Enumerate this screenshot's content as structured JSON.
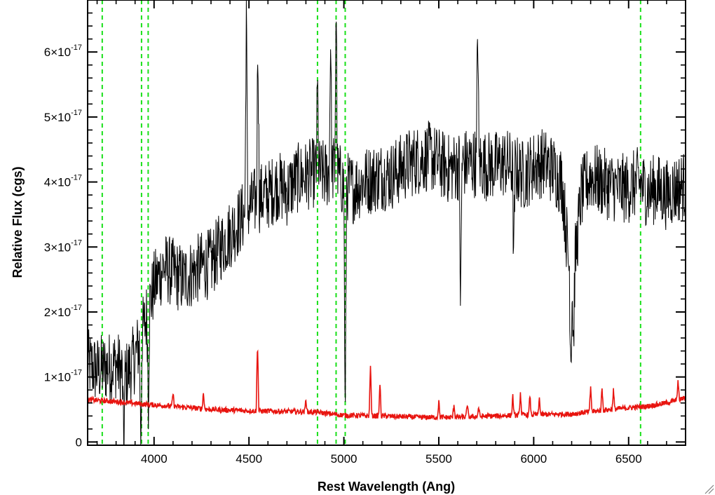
{
  "chart_data": {
    "type": "line",
    "xlabel": "Rest Wavelength (Ang)",
    "ylabel": "Relative Flux (cgs)",
    "xlim": [
      3650,
      6800
    ],
    "ylim": [
      -0.05,
      6.8
    ],
    "y_scale_label": "×10^-17",
    "x_ticks": [
      {
        "value": 4000,
        "label": "4000"
      },
      {
        "value": 4500,
        "label": "4500"
      },
      {
        "value": 5000,
        "label": "5000"
      },
      {
        "value": 5500,
        "label": "5500"
      },
      {
        "value": 6000,
        "label": "6000"
      },
      {
        "value": 6500,
        "label": "6500"
      }
    ],
    "y_ticks": [
      {
        "value": 0,
        "mant": "0",
        "exp": ""
      },
      {
        "value": 1,
        "mant": "1×10",
        "exp": "-17"
      },
      {
        "value": 2,
        "mant": "2×10",
        "exp": "-17"
      },
      {
        "value": 3,
        "mant": "3×10",
        "exp": "-17"
      },
      {
        "value": 4,
        "mant": "4×10",
        "exp": "-17"
      },
      {
        "value": 5,
        "mant": "5×10",
        "exp": "-17"
      },
      {
        "value": 6,
        "mant": "6×10",
        "exp": "-17"
      }
    ],
    "vertical_lines": [
      3727,
      3934,
      3969,
      4861,
      4959,
      5007,
      6563
    ],
    "series": [
      {
        "color": "#000000",
        "noise": 0.55,
        "points": [
          [
            3650,
            1.2
          ],
          [
            3700,
            1.1
          ],
          [
            3750,
            1.15
          ],
          [
            3800,
            1.2
          ],
          [
            3850,
            1.0
          ],
          [
            3900,
            1.3
          ],
          [
            3950,
            1.8
          ],
          [
            4000,
            2.4
          ],
          [
            4050,
            2.7
          ],
          [
            4100,
            2.6
          ],
          [
            4150,
            2.5
          ],
          [
            4200,
            2.6
          ],
          [
            4250,
            2.7
          ],
          [
            4300,
            2.75
          ],
          [
            4350,
            3.0
          ],
          [
            4400,
            3.2
          ],
          [
            4450,
            3.4
          ],
          [
            4500,
            3.6
          ],
          [
            4550,
            3.75
          ],
          [
            4600,
            3.8
          ],
          [
            4650,
            3.95
          ],
          [
            4700,
            3.85
          ],
          [
            4750,
            4.05
          ],
          [
            4800,
            4.1
          ],
          [
            4850,
            4.15
          ],
          [
            4900,
            4.1
          ],
          [
            4950,
            4.2
          ],
          [
            5000,
            3.95
          ],
          [
            5050,
            3.9
          ],
          [
            5100,
            4.0
          ],
          [
            5150,
            4.05
          ],
          [
            5200,
            4.1
          ],
          [
            5250,
            4.1
          ],
          [
            5300,
            4.2
          ],
          [
            5350,
            4.3
          ],
          [
            5400,
            4.35
          ],
          [
            5450,
            4.4
          ],
          [
            5500,
            4.3
          ],
          [
            5550,
            4.2
          ],
          [
            5600,
            4.25
          ],
          [
            5650,
            4.3
          ],
          [
            5700,
            4.3
          ],
          [
            5750,
            4.25
          ],
          [
            5800,
            4.25
          ],
          [
            5850,
            4.3
          ],
          [
            5900,
            4.2
          ],
          [
            5950,
            4.1
          ],
          [
            6000,
            4.25
          ],
          [
            6050,
            4.3
          ],
          [
            6100,
            4.2
          ],
          [
            6150,
            4.0
          ],
          [
            6200,
            2.2
          ],
          [
            6250,
            3.8
          ],
          [
            6300,
            4.1
          ],
          [
            6350,
            4.0
          ],
          [
            6400,
            3.95
          ],
          [
            6450,
            3.9
          ],
          [
            6500,
            3.9
          ],
          [
            6550,
            4.0
          ],
          [
            6600,
            3.85
          ],
          [
            6650,
            3.9
          ],
          [
            6700,
            3.8
          ],
          [
            6750,
            3.9
          ],
          [
            6800,
            3.95
          ]
        ],
        "features": [
          [
            3840,
            -1.2
          ],
          [
            3930,
            -1.7
          ],
          [
            3970,
            -1.4
          ],
          [
            4486,
            3.3
          ],
          [
            4547,
            2.7
          ],
          [
            4861,
            1.4
          ],
          [
            4930,
            2.2
          ],
          [
            4959,
            2.8
          ],
          [
            5007,
            -4.0
          ],
          [
            5615,
            -2.3
          ],
          [
            5705,
            2.3
          ],
          [
            5895,
            -1.5
          ],
          [
            6195,
            -1.1
          ],
          [
            6210,
            -1.0
          ]
        ]
      },
      {
        "color": "#e8140f",
        "noise": 0.04,
        "points": [
          [
            3650,
            0.65
          ],
          [
            3800,
            0.62
          ],
          [
            3950,
            0.58
          ],
          [
            4100,
            0.55
          ],
          [
            4300,
            0.5
          ],
          [
            4500,
            0.48
          ],
          [
            4700,
            0.47
          ],
          [
            4850,
            0.46
          ],
          [
            5000,
            0.41
          ],
          [
            5200,
            0.4
          ],
          [
            5400,
            0.38
          ],
          [
            5600,
            0.38
          ],
          [
            5800,
            0.4
          ],
          [
            6000,
            0.42
          ],
          [
            6200,
            0.43
          ],
          [
            6400,
            0.5
          ],
          [
            6600,
            0.55
          ],
          [
            6700,
            0.6
          ],
          [
            6800,
            0.68
          ]
        ],
        "features": [
          [
            4100,
            0.2
          ],
          [
            4260,
            0.25
          ],
          [
            4545,
            1.1
          ],
          [
            4800,
            0.2
          ],
          [
            5140,
            0.8
          ],
          [
            5190,
            0.5
          ],
          [
            5500,
            0.25
          ],
          [
            5580,
            0.2
          ],
          [
            5650,
            0.2
          ],
          [
            5710,
            0.15
          ],
          [
            5890,
            0.3
          ],
          [
            5930,
            0.35
          ],
          [
            5980,
            0.3
          ],
          [
            6030,
            0.25
          ],
          [
            6300,
            0.4
          ],
          [
            6360,
            0.35
          ],
          [
            6420,
            0.3
          ],
          [
            6760,
            0.3
          ]
        ]
      }
    ]
  }
}
